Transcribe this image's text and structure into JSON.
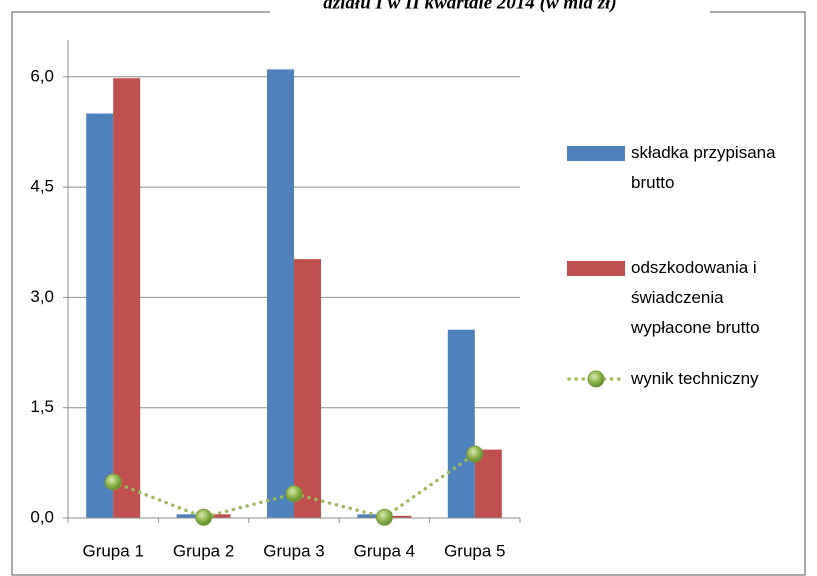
{
  "chart_data": {
    "type": "bar-line",
    "title": "działu I w II kwartale 2014 (w mld zł)",
    "categories": [
      "Grupa 1",
      "Grupa 2",
      "Grupa 3",
      "Grupa 4",
      "Grupa 5"
    ],
    "series": [
      {
        "name": "składka przypisana brutto",
        "color": "#4f81bd",
        "type": "bar",
        "values": [
          5.5,
          0.05,
          6.1,
          0.05,
          2.56
        ]
      },
      {
        "name": "odszkodowania i świadczenia wypłacone brutto",
        "color": "#c0504d",
        "type": "bar",
        "values": [
          5.98,
          0.05,
          3.52,
          0.03,
          0.93
        ]
      },
      {
        "name": "wynik techniczny",
        "color": "#9bbb59",
        "type": "line",
        "values": [
          0.49,
          0.01,
          0.33,
          0.01,
          0.87
        ]
      }
    ],
    "ylim": [
      0,
      6.5
    ],
    "yticks": [
      {
        "value": 0,
        "label": "0,0"
      },
      {
        "value": 1.5,
        "label": "1,5"
      },
      {
        "value": 3,
        "label": "3,0"
      },
      {
        "value": 4.5,
        "label": "4,5"
      },
      {
        "value": 6,
        "label": "6,0"
      }
    ],
    "grid": true,
    "legend": "right"
  }
}
